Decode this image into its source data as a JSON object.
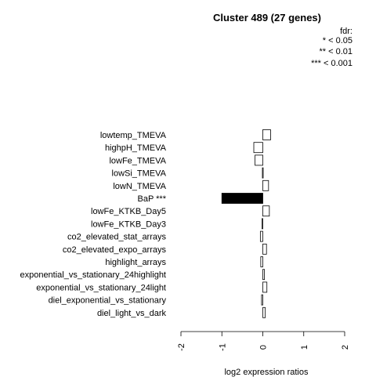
{
  "chart_data": {
    "type": "bar",
    "orientation": "horizontal",
    "title": "Cluster 489 (27 genes)",
    "xlabel": "log2 expression ratios",
    "xlim": [
      -2,
      2
    ],
    "xticks": [
      "-2",
      "-1",
      "0",
      "1",
      "2"
    ],
    "legend": {
      "title": "fdr:",
      "entries": [
        "* < 0.05",
        "** < 0.01",
        "*** < 0.001"
      ],
      "position": "top-right"
    },
    "grid": false,
    "categories": [
      "lowtemp_TMEVA",
      "highpH_TMEVA",
      "lowFe_TMEVA",
      "lowSi_TMEVA",
      "lowN_TMEVA",
      "BaP ***",
      "lowFe_KTKB_Day5",
      "lowFe_KTKB_Day3",
      "co2_elevated_stat_arrays",
      "co2_elevated_expo_arrays",
      "highlight_arrays",
      "exponential_vs_stationary_24highlight",
      "exponential_vs_stationary_24light",
      "diel_exponential_vs_stationary",
      "diel_light_vs_dark"
    ],
    "values": [
      0.19,
      -0.22,
      -0.19,
      -0.01,
      0.14,
      -1.0,
      0.16,
      -0.02,
      -0.06,
      0.09,
      -0.05,
      0.04,
      0.1,
      -0.03,
      0.06
    ],
    "significant": [
      false,
      false,
      false,
      false,
      false,
      true,
      false,
      false,
      false,
      false,
      false,
      false,
      false,
      false,
      false
    ],
    "colors": {
      "significant_fill": "#000000",
      "normal_fill": "#ffffff",
      "stroke": "#000000"
    }
  }
}
